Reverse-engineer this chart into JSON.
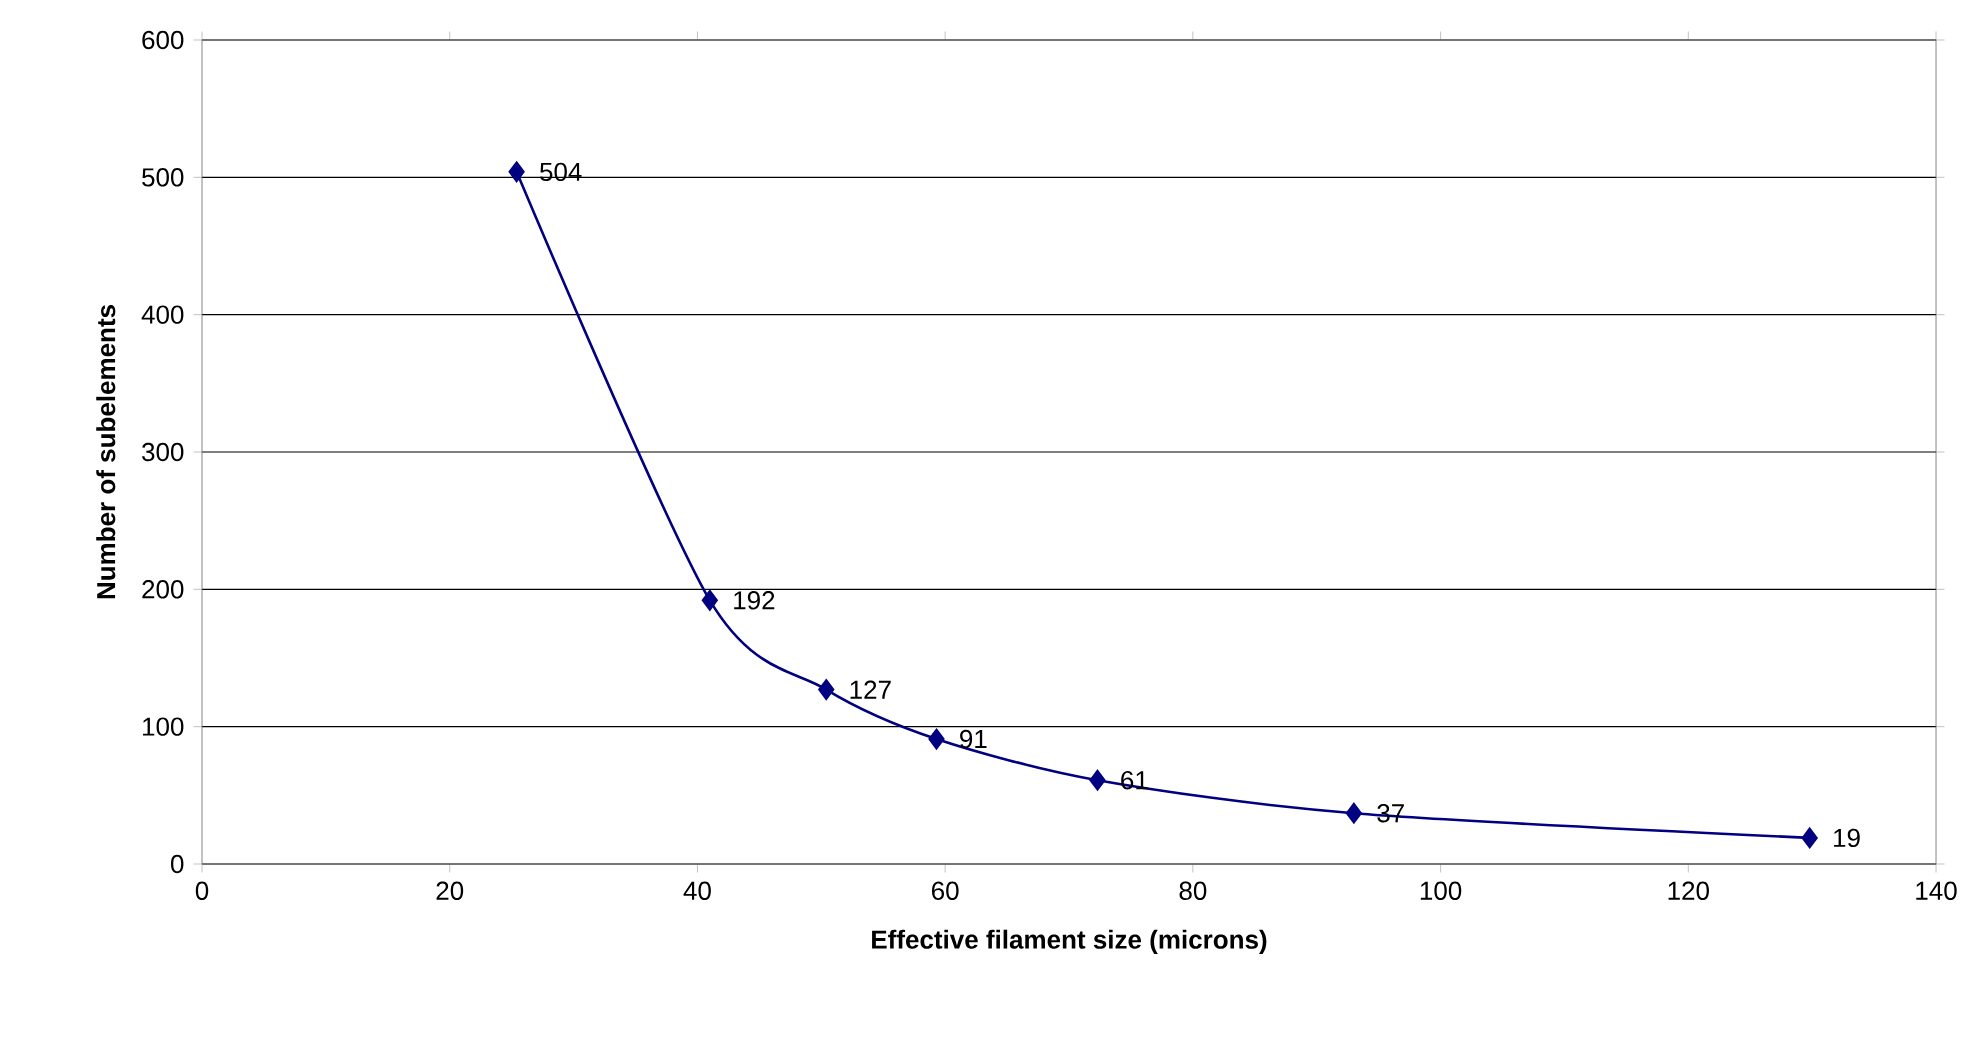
{
  "chart_data": {
    "type": "line",
    "xlabel": "Effective filament size (microns)",
    "ylabel": "Number of subelements",
    "x": [
      25.4,
      41,
      50.4,
      59.3,
      72.3,
      93,
      129.8
    ],
    "values": [
      504,
      192,
      127,
      91,
      61,
      37,
      19
    ],
    "value_labels": [
      "504",
      "192",
      "127",
      "91",
      "61",
      "37",
      "19"
    ],
    "color": "#000080",
    "marker": "diamond",
    "line_style": "solid",
    "grid": "y",
    "xlim": [
      0,
      140
    ],
    "xticks": [
      0,
      20,
      40,
      60,
      80,
      100,
      120,
      140
    ],
    "ylim": [
      0,
      600
    ],
    "yticks": [
      0,
      100,
      200,
      300,
      400,
      500,
      600
    ]
  }
}
